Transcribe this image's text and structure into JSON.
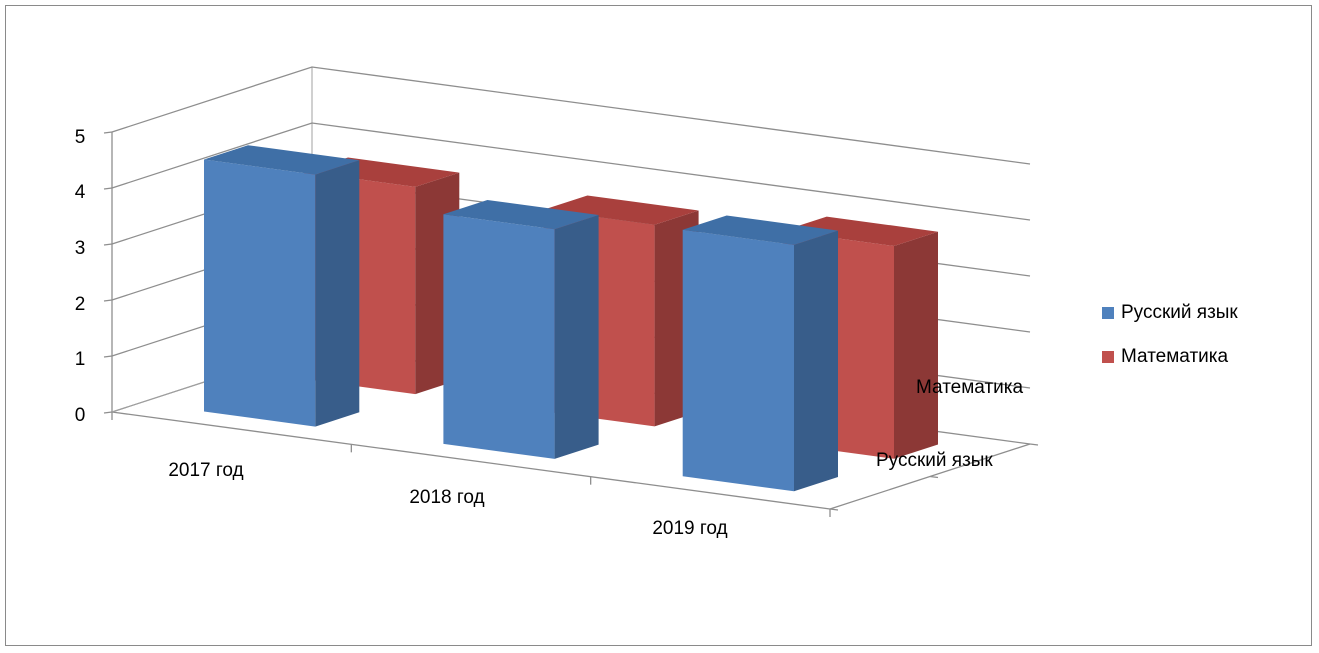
{
  "chart_data": {
    "type": "bar",
    "is_3d": true,
    "categories": [
      "2017 год",
      "2018 год",
      "2019 год"
    ],
    "series": [
      {
        "name": "Русский язык",
        "values": [
          4.5,
          4.1,
          4.4
        ],
        "color": "#4F81BD",
        "side_color": "#385D8A",
        "top_color": "#3F6FA6"
      },
      {
        "name": "Математика",
        "values": [
          3.7,
          3.6,
          3.8
        ],
        "color": "#C0504D",
        "side_color": "#8C3836",
        "top_color": "#A9403D"
      }
    ],
    "depth_labels": [
      "Математика",
      "Русский язык"
    ],
    "ylim": [
      0,
      5
    ],
    "yticks": [
      "0",
      "1",
      "2",
      "3",
      "4",
      "5"
    ],
    "grid": true,
    "legend_position": "right"
  }
}
